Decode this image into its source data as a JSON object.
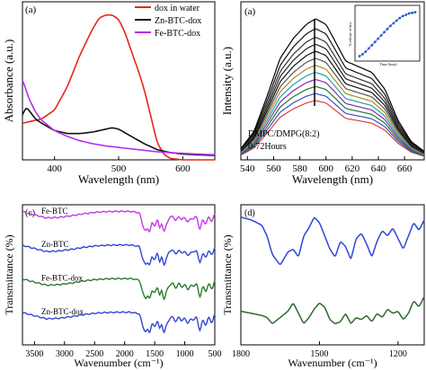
{
  "chart_data": [
    {
      "panel": "(a)",
      "type": "line",
      "xlabel": "Wavelength (nm)",
      "ylabel": "Absorbance (a.u.)",
      "xlim": [
        350,
        650
      ],
      "xticks": [
        400,
        500,
        600
      ],
      "y_ticks_shown": false,
      "grid": false,
      "legend": "top-right",
      "series": [
        {
          "name": "dox in water",
          "color": "#e8241e",
          "x": [
            350,
            360,
            380,
            400,
            420,
            440,
            460,
            470,
            480,
            490,
            500,
            510,
            520,
            530,
            540,
            550,
            560,
            570,
            580,
            600,
            620,
            650
          ],
          "y": [
            0.25,
            0.26,
            0.28,
            0.34,
            0.5,
            0.72,
            0.9,
            0.97,
            0.99,
            0.99,
            0.96,
            0.87,
            0.74,
            0.62,
            0.48,
            0.3,
            0.12,
            0.04,
            0.01,
            0.0,
            0.0,
            0.0
          ]
        },
        {
          "name": "Zn-BTC-dox",
          "color": "#111111",
          "x": [
            350,
            355,
            360,
            370,
            380,
            400,
            420,
            440,
            460,
            480,
            490,
            500,
            520,
            540,
            560,
            580,
            600,
            620,
            650
          ],
          "y": [
            0.3,
            0.36,
            0.34,
            0.28,
            0.25,
            0.2,
            0.18,
            0.18,
            0.19,
            0.21,
            0.22,
            0.21,
            0.16,
            0.11,
            0.07,
            0.05,
            0.04,
            0.035,
            0.03
          ]
        },
        {
          "name": "Fe-BTC-dox",
          "color": "#b32ff0",
          "x": [
            350,
            360,
            370,
            380,
            400,
            420,
            440,
            460,
            480,
            500,
            520,
            540,
            560,
            580,
            600,
            620,
            650
          ],
          "y": [
            0.55,
            0.42,
            0.33,
            0.27,
            0.2,
            0.16,
            0.13,
            0.11,
            0.095,
            0.085,
            0.075,
            0.065,
            0.055,
            0.05,
            0.045,
            0.04,
            0.035
          ]
        }
      ]
    },
    {
      "panel": "(a)",
      "type": "line",
      "xlabel": "Wavelength (nm)",
      "ylabel": "Intensity (a.u.)",
      "xlim": [
        535,
        675
      ],
      "xticks": [
        540,
        560,
        580,
        600,
        620,
        640,
        660
      ],
      "y_ticks_shown": false,
      "annotation_lines": [
        "DMPC/DMPG(8:2)",
        "0-72Hours"
      ],
      "series_colors": [
        "#d8433a",
        "#3a4fc4",
        "#1d7d2a",
        "#8a2bb0",
        "#1aa3b8",
        "#b08a1a",
        "#555555",
        "#111111",
        "#222222",
        "#333333",
        "#111111",
        "#000000"
      ],
      "profile_x": [
        535,
        545,
        555,
        565,
        575,
        585,
        592,
        600,
        607,
        615,
        625,
        635,
        645,
        655,
        665,
        675
      ],
      "profile_y": [
        0.08,
        0.2,
        0.45,
        0.72,
        0.86,
        0.96,
        1.0,
        0.96,
        0.84,
        0.7,
        0.66,
        0.62,
        0.5,
        0.28,
        0.13,
        0.06
      ],
      "series_scales": [
        0.42,
        0.47,
        0.52,
        0.57,
        0.62,
        0.67,
        0.72,
        0.77,
        0.82,
        0.87,
        0.93,
        1.0
      ],
      "inset": {
        "type": "scatter",
        "xlabel": "Time (hour)",
        "ylabel": "% release of dox",
        "color": "#2a5ad0",
        "x": [
          0,
          4,
          8,
          12,
          16,
          20,
          24,
          28,
          32,
          36,
          40,
          44,
          48,
          52,
          56,
          60,
          64,
          68,
          72
        ],
        "y": [
          2,
          5,
          9,
          14,
          19,
          24,
          29,
          34,
          39,
          44,
          49,
          53,
          57,
          61,
          64,
          66,
          68,
          69,
          70
        ]
      }
    },
    {
      "panel": "(c)",
      "type": "line",
      "xlabel": "Wavenumber (cm⁻¹)",
      "ylabel": "Transmittance (%)",
      "xlim": [
        3700,
        500
      ],
      "xticks": [
        3500,
        3000,
        2500,
        2000,
        1500,
        1000,
        500
      ],
      "y_ticks_shown": false,
      "series": [
        {
          "name": "Fe-BTC",
          "color": "#c637e6",
          "offset": 0.78,
          "amp": 0.18
        },
        {
          "name": "Zn-BTC",
          "color": "#2f44d8",
          "offset": 0.54,
          "amp": 0.18
        },
        {
          "name": "Fe-BTC-dox",
          "color": "#2a7a2a",
          "offset": 0.3,
          "amp": 0.18
        },
        {
          "name": "Zn-BTC-dox",
          "color": "#2f44d8",
          "offset": 0.06,
          "amp": 0.18
        }
      ],
      "spectrum_x": [
        3700,
        3500,
        3300,
        3100,
        2900,
        2700,
        2500,
        2300,
        2100,
        1900,
        1750,
        1700,
        1650,
        1620,
        1580,
        1550,
        1500,
        1450,
        1420,
        1380,
        1350,
        1300,
        1250,
        1200,
        1150,
        1100,
        1050,
        1000,
        950,
        900,
        850,
        800,
        750,
        700,
        650,
        600,
        550,
        500
      ],
      "spectrum_y": [
        0.95,
        0.82,
        0.7,
        0.72,
        0.78,
        0.86,
        0.92,
        0.95,
        0.96,
        0.96,
        0.9,
        0.4,
        0.15,
        0.3,
        0.1,
        0.55,
        0.35,
        0.7,
        0.2,
        0.6,
        0.05,
        0.5,
        0.7,
        0.8,
        0.55,
        0.8,
        0.6,
        0.75,
        0.5,
        0.7,
        0.65,
        0.8,
        0.15,
        0.7,
        0.4,
        0.8,
        0.5,
        0.9
      ]
    },
    {
      "panel": "(d)",
      "type": "line",
      "xlabel": "Wavenumber (cm⁻¹)",
      "ylabel": "Transmittance (%)",
      "xlim": [
        1800,
        1100
      ],
      "xticks": [
        1800,
        1500,
        1200
      ],
      "y_ticks_shown": false,
      "series": [
        {
          "name": "",
          "color": "#2f44d8",
          "offset": 0.55,
          "amp": 0.38,
          "x": [
            1800,
            1760,
            1720,
            1700,
            1680,
            1650,
            1620,
            1600,
            1580,
            1560,
            1540,
            1520,
            1500,
            1480,
            1460,
            1440,
            1420,
            1400,
            1380,
            1360,
            1340,
            1320,
            1300,
            1280,
            1260,
            1240,
            1220,
            1200,
            1180,
            1160,
            1140,
            1120,
            1100
          ],
          "y": [
            0.95,
            0.9,
            0.8,
            0.6,
            0.25,
            0.05,
            0.3,
            0.35,
            0.2,
            0.6,
            0.75,
            0.95,
            0.85,
            0.6,
            0.35,
            0.2,
            0.5,
            0.4,
            0.15,
            0.55,
            0.65,
            0.45,
            0.2,
            0.5,
            0.7,
            0.6,
            0.75,
            0.55,
            0.35,
            0.6,
            0.85,
            0.7,
            0.9
          ]
        },
        {
          "name": "",
          "color": "#2a6a2a",
          "offset": 0.06,
          "amp": 0.3,
          "x": [
            1800,
            1760,
            1720,
            1700,
            1680,
            1650,
            1620,
            1600,
            1580,
            1560,
            1540,
            1520,
            1500,
            1480,
            1460,
            1440,
            1420,
            1400,
            1380,
            1360,
            1340,
            1320,
            1300,
            1280,
            1260,
            1240,
            1220,
            1200,
            1180,
            1160,
            1140,
            1120,
            1100
          ],
          "y": [
            0.6,
            0.55,
            0.5,
            0.45,
            0.3,
            0.45,
            0.6,
            0.8,
            0.55,
            0.3,
            0.45,
            0.65,
            0.8,
            0.7,
            0.4,
            0.3,
            0.35,
            0.55,
            0.3,
            0.45,
            0.4,
            0.5,
            0.35,
            0.55,
            0.45,
            0.65,
            0.55,
            0.6,
            0.4,
            0.55,
            0.85,
            0.7,
            0.95
          ]
        }
      ]
    }
  ]
}
